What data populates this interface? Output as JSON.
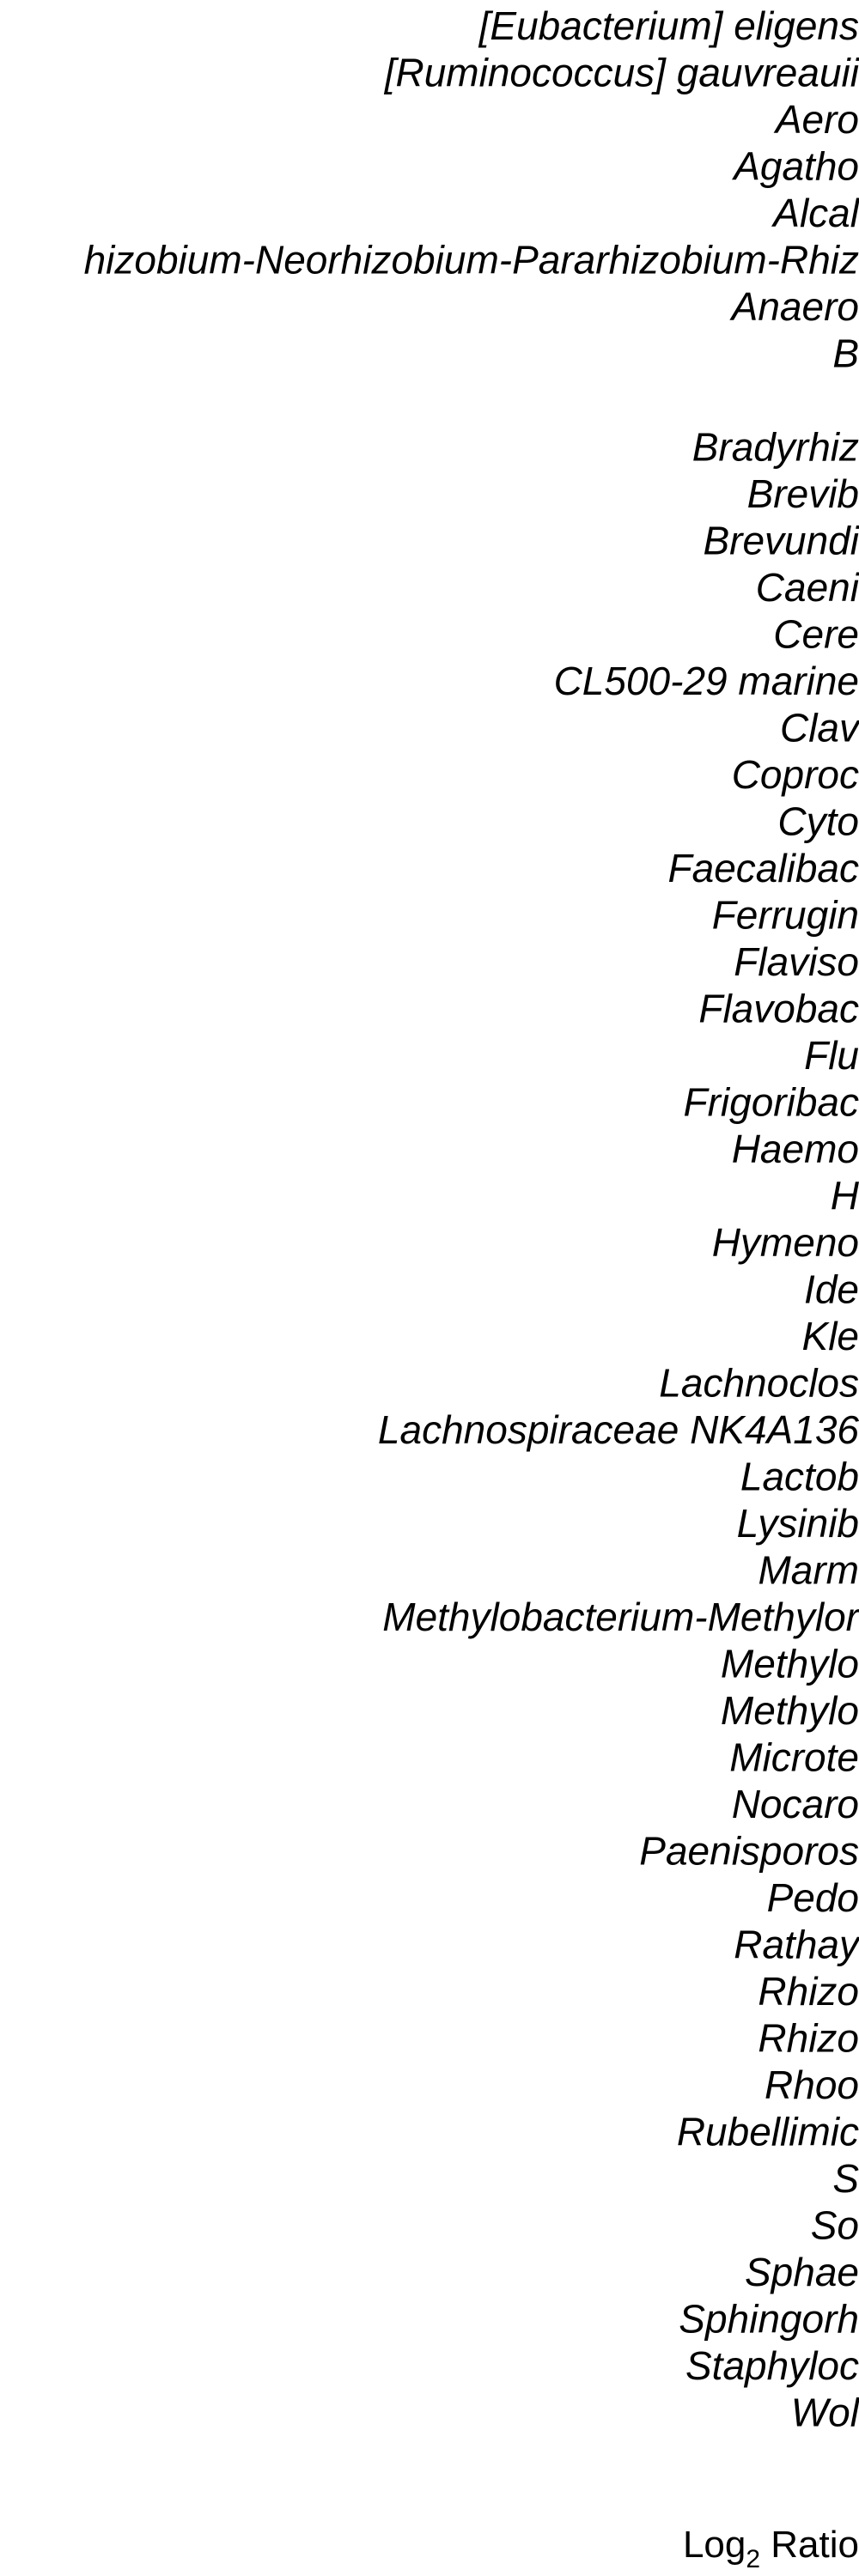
{
  "chart_data": {
    "type": "bar",
    "orientation": "horizontal",
    "categories": [
      "[Eubacterium] eligens",
      "[Ruminococcus] gauvreauii",
      "Aero",
      "Agatho",
      "Alcal",
      "hizobium-Neorhizobium-Pararhizobium-Rhiz",
      "Anaero",
      "B",
      "",
      "Bradyrhiz",
      "Brevib",
      "Brevundi",
      "Caeni",
      "Cere",
      "CL500-29 marine",
      "Clav",
      "Coproc",
      "Cyto",
      "Faecalibac",
      "Ferrugin",
      "Flaviso",
      "Flavobac",
      "Flu",
      "Frigoribac",
      "Haemo",
      "H",
      "Hymeno",
      "Ide",
      "Kle",
      "Lachnoclos",
      "Lachnospiraceae NK4A136",
      "Lactob",
      "Lysinib",
      "Marm",
      "Methylobacterium-Methylor",
      "Methylo",
      "Methylo",
      "Microte",
      "Nocaro",
      "Paenisporos",
      "Pedo",
      "Rathay",
      "Rhizo",
      "Rhizo",
      "Rhoo",
      "Rubellimic",
      "S",
      "So",
      "Sphae",
      "Sphingorh",
      "Staphyloc",
      "Wol"
    ],
    "xlabel": "Log",
    "xlabel_subscript": "2",
    "xlabel_suffix": " Ratio"
  }
}
